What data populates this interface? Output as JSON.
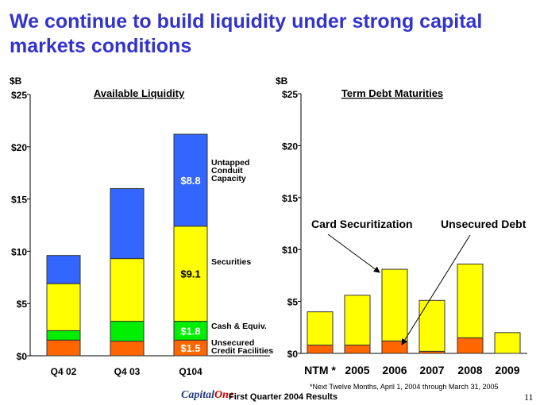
{
  "title": "We continue to build liquidity under strong capital markets conditions",
  "colors": {
    "title": "#3333cc",
    "blue": "#3366ff",
    "yellow": "#ffff00",
    "green": "#00ee00",
    "orange": "#ff6600"
  },
  "chart_data": [
    {
      "type": "bar",
      "stacked": true,
      "title": "Available Liquidity",
      "ylabel": "$B",
      "ylim": [
        0,
        25
      ],
      "yticks": [
        "$0",
        "$5",
        "$10",
        "$15",
        "$20",
        "$25"
      ],
      "categories": [
        "Q4 02",
        "Q4 03",
        "Q104"
      ],
      "series": [
        {
          "name": "Unsecured Credit Facilities",
          "color": "#ff6600",
          "values": [
            1.5,
            1.4,
            1.5
          ]
        },
        {
          "name": "Cash & Equiv.",
          "color": "#00ee00",
          "values": [
            0.9,
            1.9,
            1.8
          ]
        },
        {
          "name": "Securities",
          "color": "#ffff00",
          "values": [
            4.5,
            6.0,
            9.1
          ]
        },
        {
          "name": "Untapped Conduit Capacity",
          "color": "#3366ff",
          "values": [
            2.7,
            6.7,
            8.8
          ]
        }
      ],
      "data_labels": {
        "Q104": [
          "$1.5",
          "$1.8",
          "$9.1",
          "$8.8"
        ]
      },
      "legend_labels": [
        "Untapped\nConduit\nCapacity",
        "Securities",
        "Cash & Equiv.",
        "Unsecured\nCredit Facilities"
      ]
    },
    {
      "type": "bar",
      "stacked": true,
      "title": "Term Debt Maturities",
      "ylabel": "$B",
      "ylim": [
        0,
        25
      ],
      "yticks": [
        "$0",
        "$5",
        "$10",
        "$15",
        "$20",
        "$25"
      ],
      "categories": [
        "NTM *",
        "2005",
        "2006",
        "2007",
        "2008",
        "2009"
      ],
      "series": [
        {
          "name": "Unsecured Debt",
          "color": "#ff6600",
          "values": [
            0.8,
            0.8,
            1.2,
            0.2,
            1.5,
            0
          ]
        },
        {
          "name": "Card Securitization",
          "color": "#ffff00",
          "values": [
            3.2,
            4.8,
            6.9,
            4.9,
            7.1,
            2.0
          ]
        }
      ],
      "annotations": [
        "Card Securitization",
        "Unsecured Debt"
      ]
    }
  ],
  "footnote": "*Next Twelve Months, April 1, 2004 through March 31, 2005",
  "footer": {
    "logo": "CapitalOne",
    "text": "First Quarter 2004 Results",
    "page": "11"
  }
}
